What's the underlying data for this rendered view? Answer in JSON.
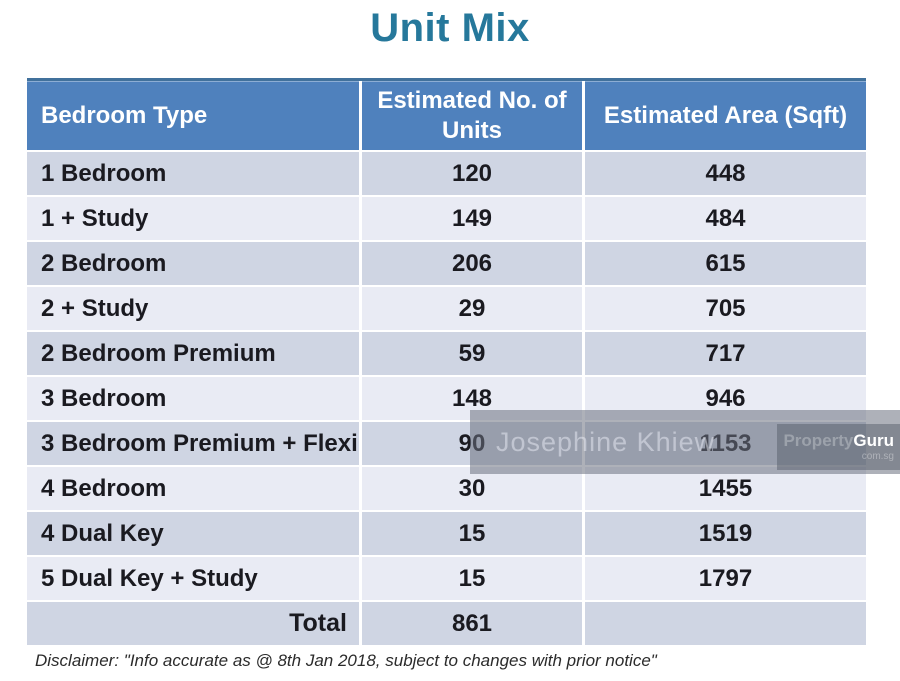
{
  "title": "Unit Mix",
  "colors": {
    "title_teal": "#26789b",
    "header_blue": "#4f81bd",
    "band_dark": "#cfd5e3",
    "band_light": "#e9ebf4",
    "watermark_gray": "rgba(107,113,127,0.55)"
  },
  "table": {
    "headers": [
      "Bedroom Type",
      "Estimated No. of Units",
      "Estimated Area (Sqft)"
    ],
    "rows": [
      {
        "type": "1 Bedroom",
        "units": "120",
        "area": "448"
      },
      {
        "type": "1 + Study",
        "units": "149",
        "area": "484"
      },
      {
        "type": "2 Bedroom",
        "units": "206",
        "area": "615"
      },
      {
        "type": "2 + Study",
        "units": "29",
        "area": "705"
      },
      {
        "type": "2 Bedroom Premium",
        "units": "59",
        "area": "717"
      },
      {
        "type": "3 Bedroom",
        "units": "148",
        "area": "946"
      },
      {
        "type": "3 Bedroom Premium + Flexi",
        "units": "90",
        "area": "1153"
      },
      {
        "type": "4 Bedroom",
        "units": "30",
        "area": "1455"
      },
      {
        "type": "4 Dual Key",
        "units": "15",
        "area": "1519"
      },
      {
        "type": "5 Dual Key + Study",
        "units": "15",
        "area": "1797"
      }
    ],
    "total_label": "Total",
    "total_units": "861",
    "total_area": ""
  },
  "watermark": {
    "name": "Josephine Khiew",
    "brand_property": "Property",
    "brand_guru": "Guru",
    "brand_suffix": "com.sg"
  },
  "disclaimer": "Disclaimer: \"Info accurate as @ 8th Jan 2018, subject to changes with prior notice\"",
  "chart_data": {
    "type": "table",
    "title": "Unit Mix",
    "columns": [
      "Bedroom Type",
      "Estimated No. of Units",
      "Estimated Area (Sqft)"
    ],
    "rows": [
      [
        "1 Bedroom",
        120,
        448
      ],
      [
        "1 + Study",
        149,
        484
      ],
      [
        "2 Bedroom",
        206,
        615
      ],
      [
        "2 + Study",
        29,
        705
      ],
      [
        "2 Bedroom Premium",
        59,
        717
      ],
      [
        "3 Bedroom",
        148,
        946
      ],
      [
        "3 Bedroom Premium + Flexi",
        90,
        1153
      ],
      [
        "4 Bedroom",
        30,
        1455
      ],
      [
        "4 Dual Key",
        15,
        1519
      ],
      [
        "5 Dual Key + Study",
        15,
        1797
      ]
    ],
    "total": [
      "Total",
      861,
      null
    ],
    "notes": "Disclaimer: \"Info accurate as @ 8th Jan 2018, subject to changes with prior notice\""
  }
}
